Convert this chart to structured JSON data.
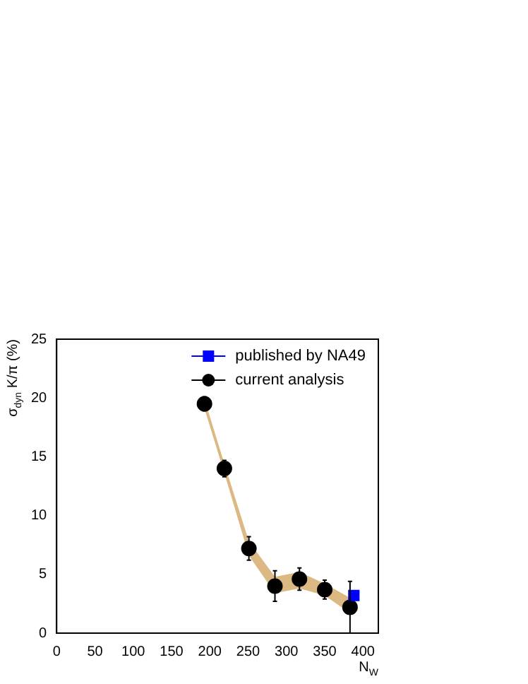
{
  "chart_data": {
    "type": "scatter",
    "xlabel": "N$_{W}$",
    "ylabel": "σ$_{dyn}$ K/π (%)",
    "xlim": [
      0,
      420
    ],
    "xticks": [
      0,
      50,
      100,
      150,
      200,
      250,
      300,
      350,
      400
    ],
    "ylim": [
      0,
      25
    ],
    "yticks": [
      0,
      5,
      10,
      15,
      20,
      25
    ],
    "grid": false,
    "legend": "top right",
    "series": [
      {
        "name": "published by NA49",
        "color": "#0000ff",
        "marker": "square",
        "x": [
          388
        ],
        "values": [
          3.2
        ]
      },
      {
        "name": "current analysis",
        "color": "#000000",
        "marker": "circle",
        "x": [
          193,
          219,
          251,
          285,
          317,
          350,
          383
        ],
        "values": [
          19.5,
          14.0,
          7.2,
          4.0,
          4.6,
          3.7,
          2.2
        ],
        "errors": [
          0.6,
          0.7,
          1.0,
          1.3,
          0.95,
          0.8,
          2.2
        ],
        "lower": [
          19.1,
          13.6,
          6.6,
          3.4,
          3.8,
          3.2,
          1.7
        ],
        "upper": [
          19.9,
          14.4,
          7.8,
          4.8,
          5.2,
          4.2,
          3.0
        ]
      }
    ]
  }
}
